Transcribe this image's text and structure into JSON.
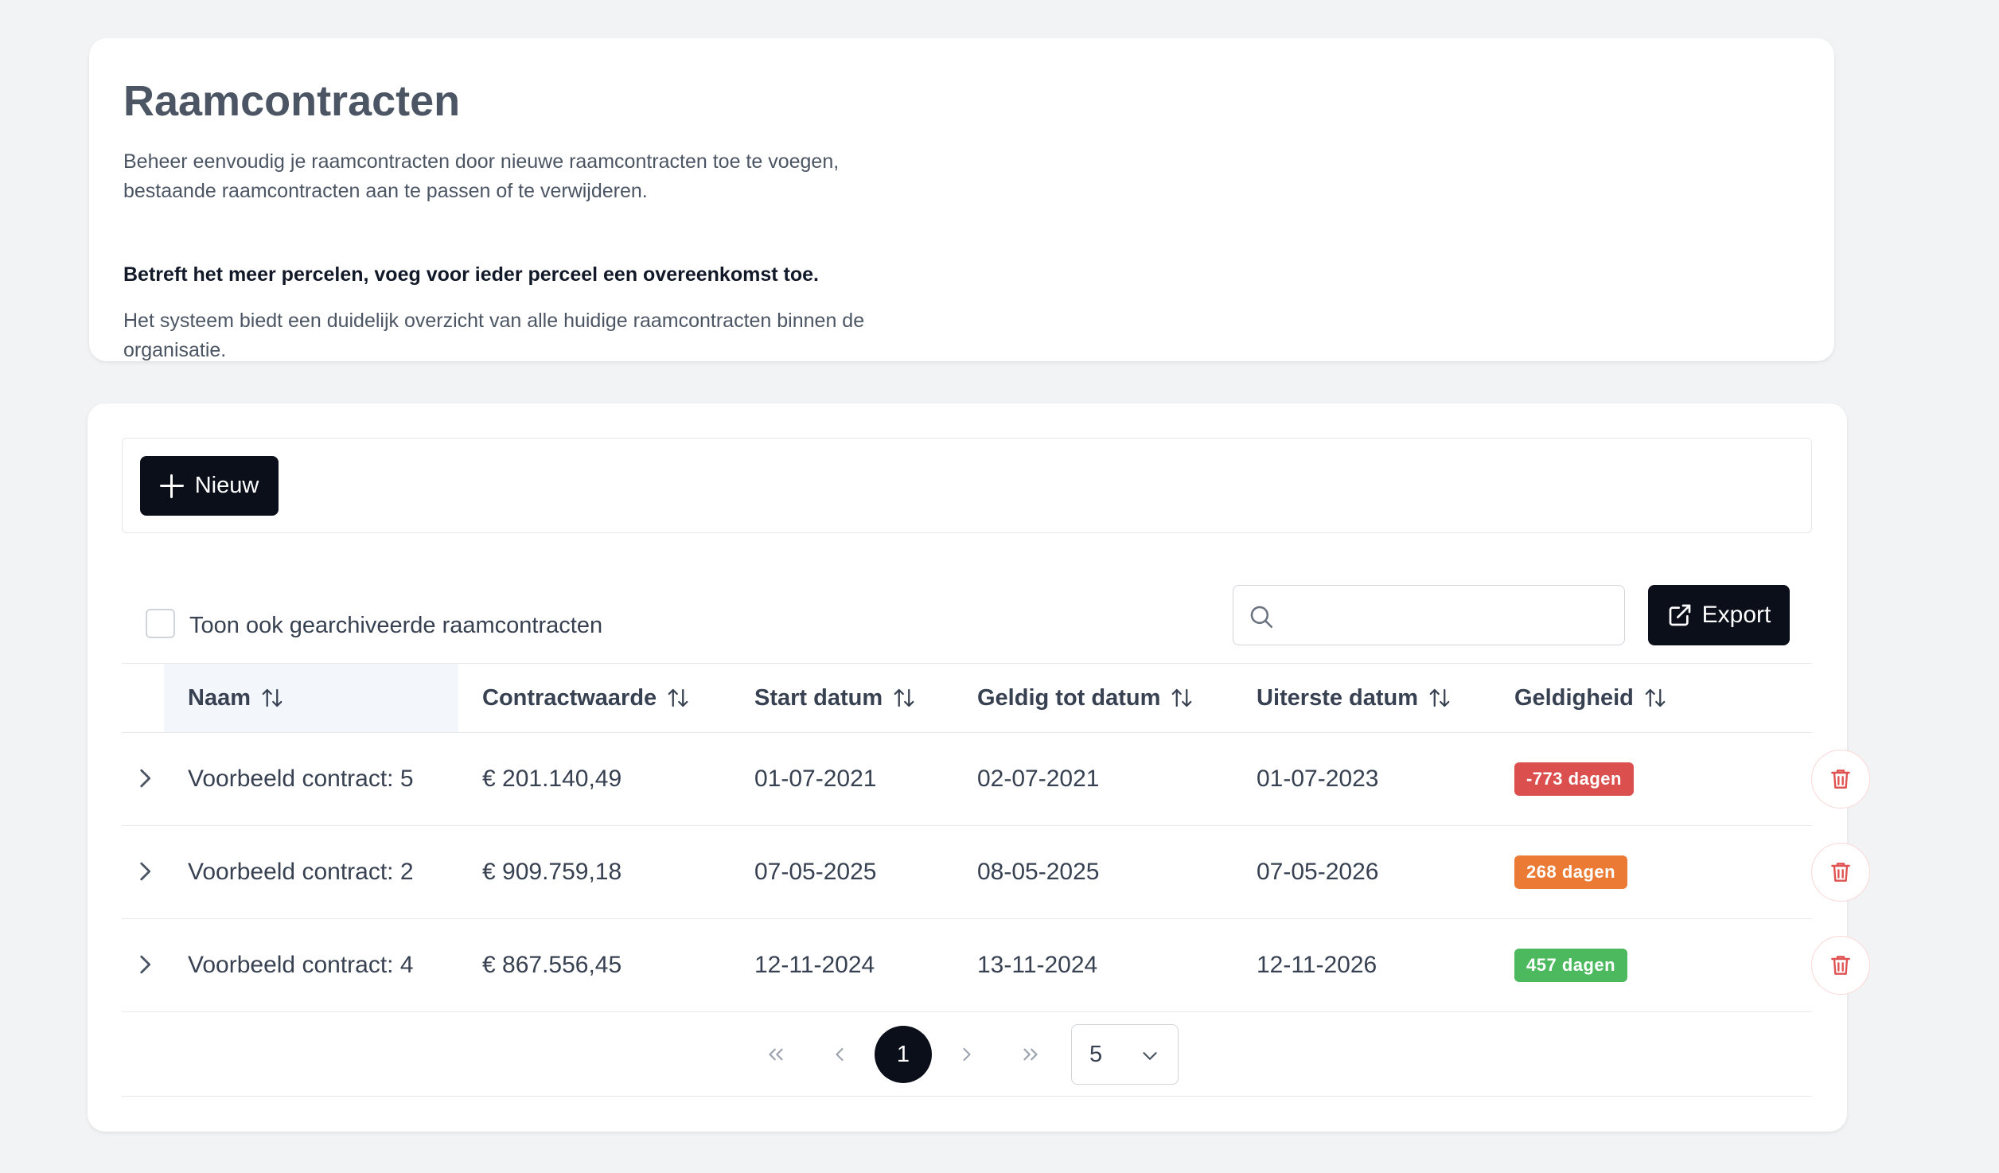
{
  "intro": {
    "title": "Raamcontracten",
    "paragraph1": "Beheer eenvoudig je raamcontracten door nieuwe raamcontracten toe te voegen, bestaande raamcontracten aan te passen of te verwijderen.",
    "paragraph2": "Betreft het meer percelen, voeg voor ieder perceel een overeenkomst toe.",
    "paragraph3": "Het systeem biedt een duidelijk overzicht van alle huidige raamcontracten binnen de organisatie."
  },
  "toolbar": {
    "new_label": "Nieuw",
    "new_icon": "plus-icon"
  },
  "filters": {
    "archive_label": "Toon ook gearchiveerde raamcontracten",
    "archive_checked": false,
    "search_placeholder": "",
    "search_value": "",
    "export_label": "Export",
    "export_icon": "external-link-icon"
  },
  "table": {
    "columns": [
      "Naam",
      "Contractwaarde",
      "Start datum",
      "Geldig tot datum",
      "Uiterste datum",
      "Geldigheid"
    ],
    "sorted_column": "Naam",
    "rows": [
      {
        "naam": "Voorbeeld contract: 5",
        "contractwaarde": "€ 201.140,49",
        "start": "01-07-2021",
        "geldig_tot": "02-07-2021",
        "uiterste": "01-07-2023",
        "geldigheid": "-773 dagen",
        "status_color": "#dc4f4f"
      },
      {
        "naam": "Voorbeeld contract: 2",
        "contractwaarde": "€ 909.759,18",
        "start": "07-05-2025",
        "geldig_tot": "08-05-2025",
        "uiterste": "07-05-2026",
        "geldigheid": "268 dagen",
        "status_color": "#ea7a34"
      },
      {
        "naam": "Voorbeeld contract: 4",
        "contractwaarde": "€ 867.556,45",
        "start": "12-11-2024",
        "geldig_tot": "13-11-2024",
        "uiterste": "12-11-2026",
        "geldigheid": "457 dagen",
        "status_color": "#4cb95e"
      }
    ]
  },
  "pagination": {
    "current_page": "1",
    "page_size": "5"
  },
  "colors": {
    "primary_button": "#0b0f1a",
    "delete_icon": "#e05252",
    "background": "#f2f3f5"
  }
}
